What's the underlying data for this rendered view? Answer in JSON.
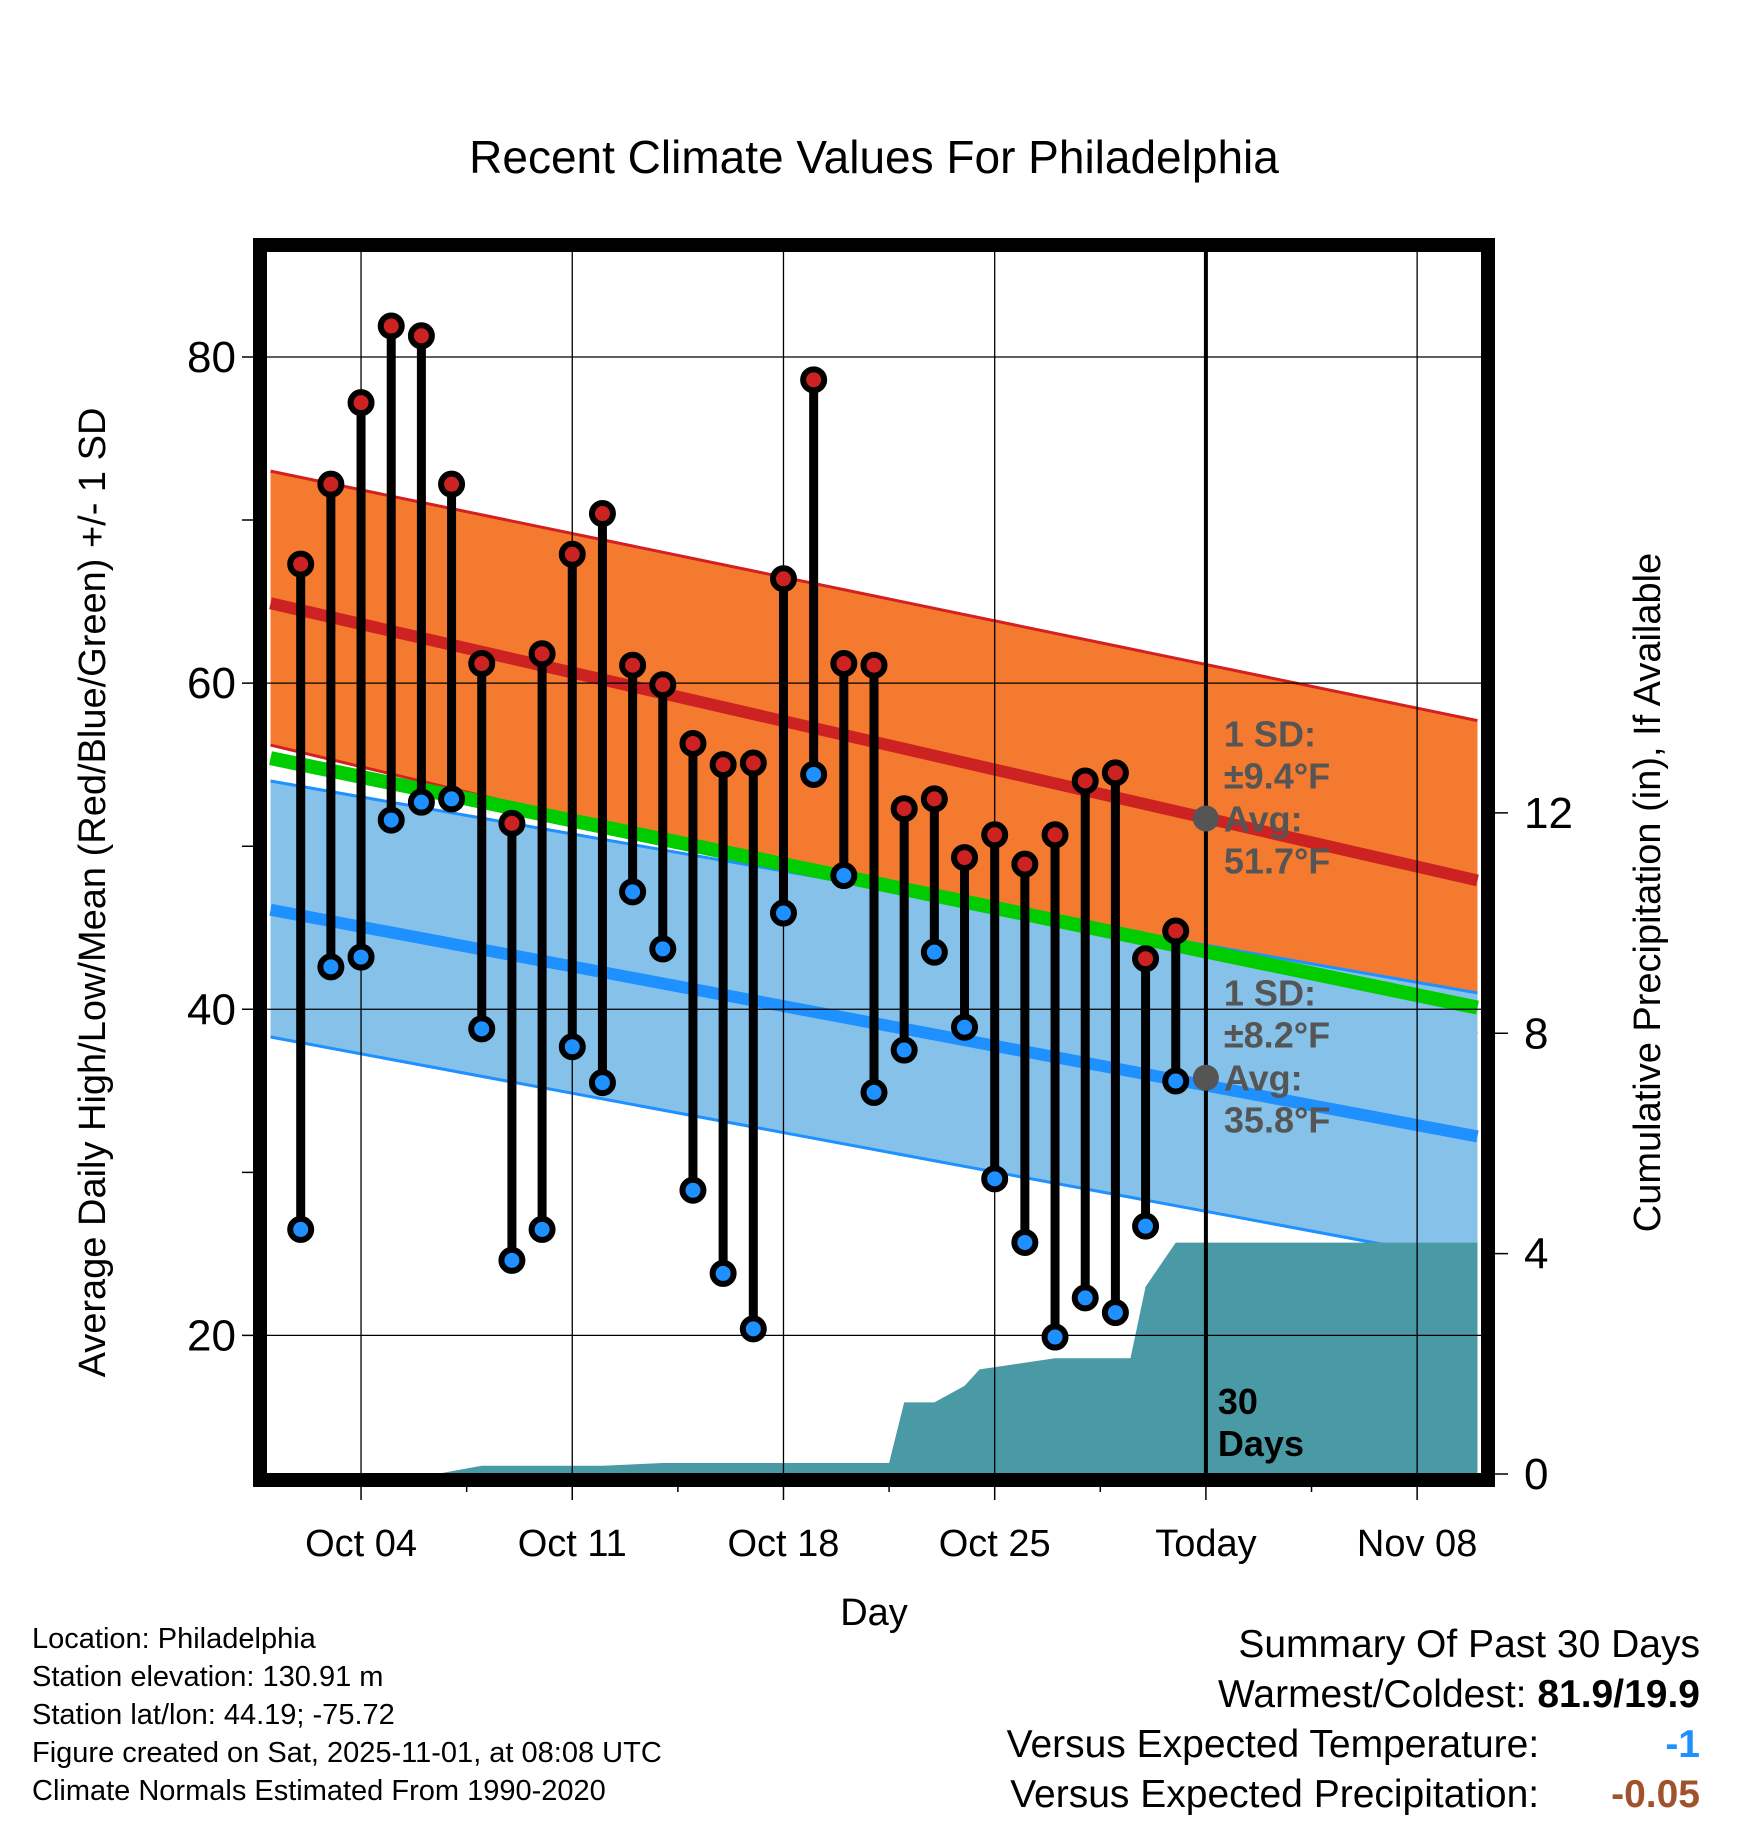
{
  "chart_data": {
    "type": "line",
    "title": "Recent Climate Values For Philadelphia",
    "xlabel": "Day",
    "ylabel": "Average Daily High/Low/Mean (Red/Blue/Green) +/- 1 SD",
    "ylabel_right": "Cumulative Precipitation (in), If Available",
    "ylim": [
      11.5,
      86.5
    ],
    "ylim_right": [
      0,
      22.2
    ],
    "y_ticks": [
      20,
      40,
      60,
      80
    ],
    "y_ticks_right": [
      0,
      4,
      8,
      12
    ],
    "x_ticks": [
      {
        "label": "Oct 04",
        "day": 4
      },
      {
        "label": "Oct 11",
        "day": 11
      },
      {
        "label": "Oct 18",
        "day": 18
      },
      {
        "label": "Oct 25",
        "day": 25
      },
      {
        "label": "Today",
        "day": 32
      },
      {
        "label": "Nov 08",
        "day": 39
      },
      {
        "label": "",
        "day": 7.5
      },
      {
        "label": "",
        "day": 14.5
      },
      {
        "label": "",
        "day": 21.5
      },
      {
        "label": "",
        "day": 28.5
      },
      {
        "label": "",
        "day": 35.5
      }
    ],
    "xlim": [
      0.85,
      41.15
    ],
    "today_day": 32,
    "days": [
      2,
      3,
      4,
      5,
      6,
      7,
      8,
      9,
      10,
      11,
      12,
      13,
      14,
      15,
      16,
      17,
      18,
      19,
      20,
      21,
      22,
      23,
      24,
      25,
      26,
      27,
      28,
      29,
      30,
      31
    ],
    "series": [
      {
        "name": "High",
        "color": "#cc2222",
        "values": [
          67.3,
          72.2,
          77.2,
          81.9,
          81.3,
          72.2,
          61.2,
          51.4,
          61.8,
          67.9,
          70.4,
          61.1,
          59.9,
          56.3,
          55.0,
          55.1,
          66.4,
          78.6,
          61.2,
          61.1,
          52.3,
          52.9,
          49.3,
          50.7,
          48.9,
          50.7,
          54.0,
          54.5,
          43.1,
          44.8
        ]
      },
      {
        "name": "Low",
        "color": "#1e90ff",
        "values": [
          26.5,
          42.6,
          43.2,
          51.6,
          52.7,
          52.9,
          38.8,
          24.6,
          26.5,
          37.7,
          35.5,
          47.2,
          43.7,
          28.9,
          23.8,
          20.4,
          45.9,
          54.4,
          48.2,
          34.9,
          37.5,
          43.5,
          38.9,
          29.6,
          25.7,
          19.9,
          22.3,
          21.4,
          26.7,
          35.6
        ]
      }
    ],
    "normals": {
      "start_day": 1,
      "end_day": 41,
      "high_mean": [
        64.9,
        47.9
      ],
      "high_sd_upper": [
        73.0,
        57.7
      ],
      "high_sd_lower": [
        56.2,
        38.5
      ],
      "low_mean": [
        46.1,
        32.2
      ],
      "low_sd_upper": [
        54.0,
        41.0
      ],
      "low_sd_lower": [
        38.3,
        24.5
      ],
      "overall_mean": [
        55.4,
        40.1
      ]
    },
    "precip_cumulative": {
      "days": [
        1,
        6,
        6.5,
        8,
        10,
        12,
        14,
        16,
        19,
        19.5,
        20,
        21,
        21.5,
        22,
        23,
        24,
        24.5,
        27,
        28,
        29,
        29.5,
        30,
        31,
        33,
        41
      ],
      "values": [
        0,
        0,
        0,
        0.15,
        0.15,
        0.15,
        0.2,
        0.2,
        0.2,
        0.2,
        0.2,
        0.2,
        0.2,
        1.3,
        1.3,
        1.6,
        1.9,
        2.1,
        2.1,
        2.1,
        2.1,
        3.4,
        4.2,
        4.2,
        4.2
      ]
    },
    "annotations": {
      "high_sd_label": "1 SD:",
      "high_sd_value": "±9.4°F",
      "high_avg_label": "Avg:",
      "high_avg_value": "51.7°F",
      "high_avg_point": 51.7,
      "low_sd_label": "1 SD:",
      "low_sd_value": "±8.2°F",
      "low_avg_label": "Avg:",
      "low_avg_value": "35.8°F",
      "low_avg_point": 35.8,
      "window_line1": "30",
      "window_line2": "Days"
    }
  },
  "colors": {
    "high_band": "#f47a30",
    "high_band_edge": "#d42020",
    "high_mean": "#cc2222",
    "low_band": "#85c1e8",
    "low_band_edge": "#1e90ff",
    "low_mean": "#1e90ff",
    "overall_mean": "#00cc00",
    "precip": "#4a9aa5",
    "annotation": "#555555",
    "temp_diff": "#1e90ff",
    "precip_diff": "#a0522d"
  },
  "footer": {
    "location": "Location: Philadelphia",
    "elevation": "Station elevation: 130.91 m",
    "latlon": "Station lat/lon: 44.19; -75.72",
    "created": "Figure created on Sat, 2025-11-01, at 08:08 UTC",
    "normals": "Climate Normals Estimated From 1990-2020"
  },
  "summary": {
    "title": "Summary Of Past 30 Days",
    "warm_cold_label": "Warmest/Coldest:",
    "warm_cold_value": "81.9/19.9",
    "temp_label": "Versus Expected Temperature:",
    "temp_value": "-1",
    "precip_label": "Versus Expected Precipitation:",
    "precip_value": "-0.05"
  }
}
